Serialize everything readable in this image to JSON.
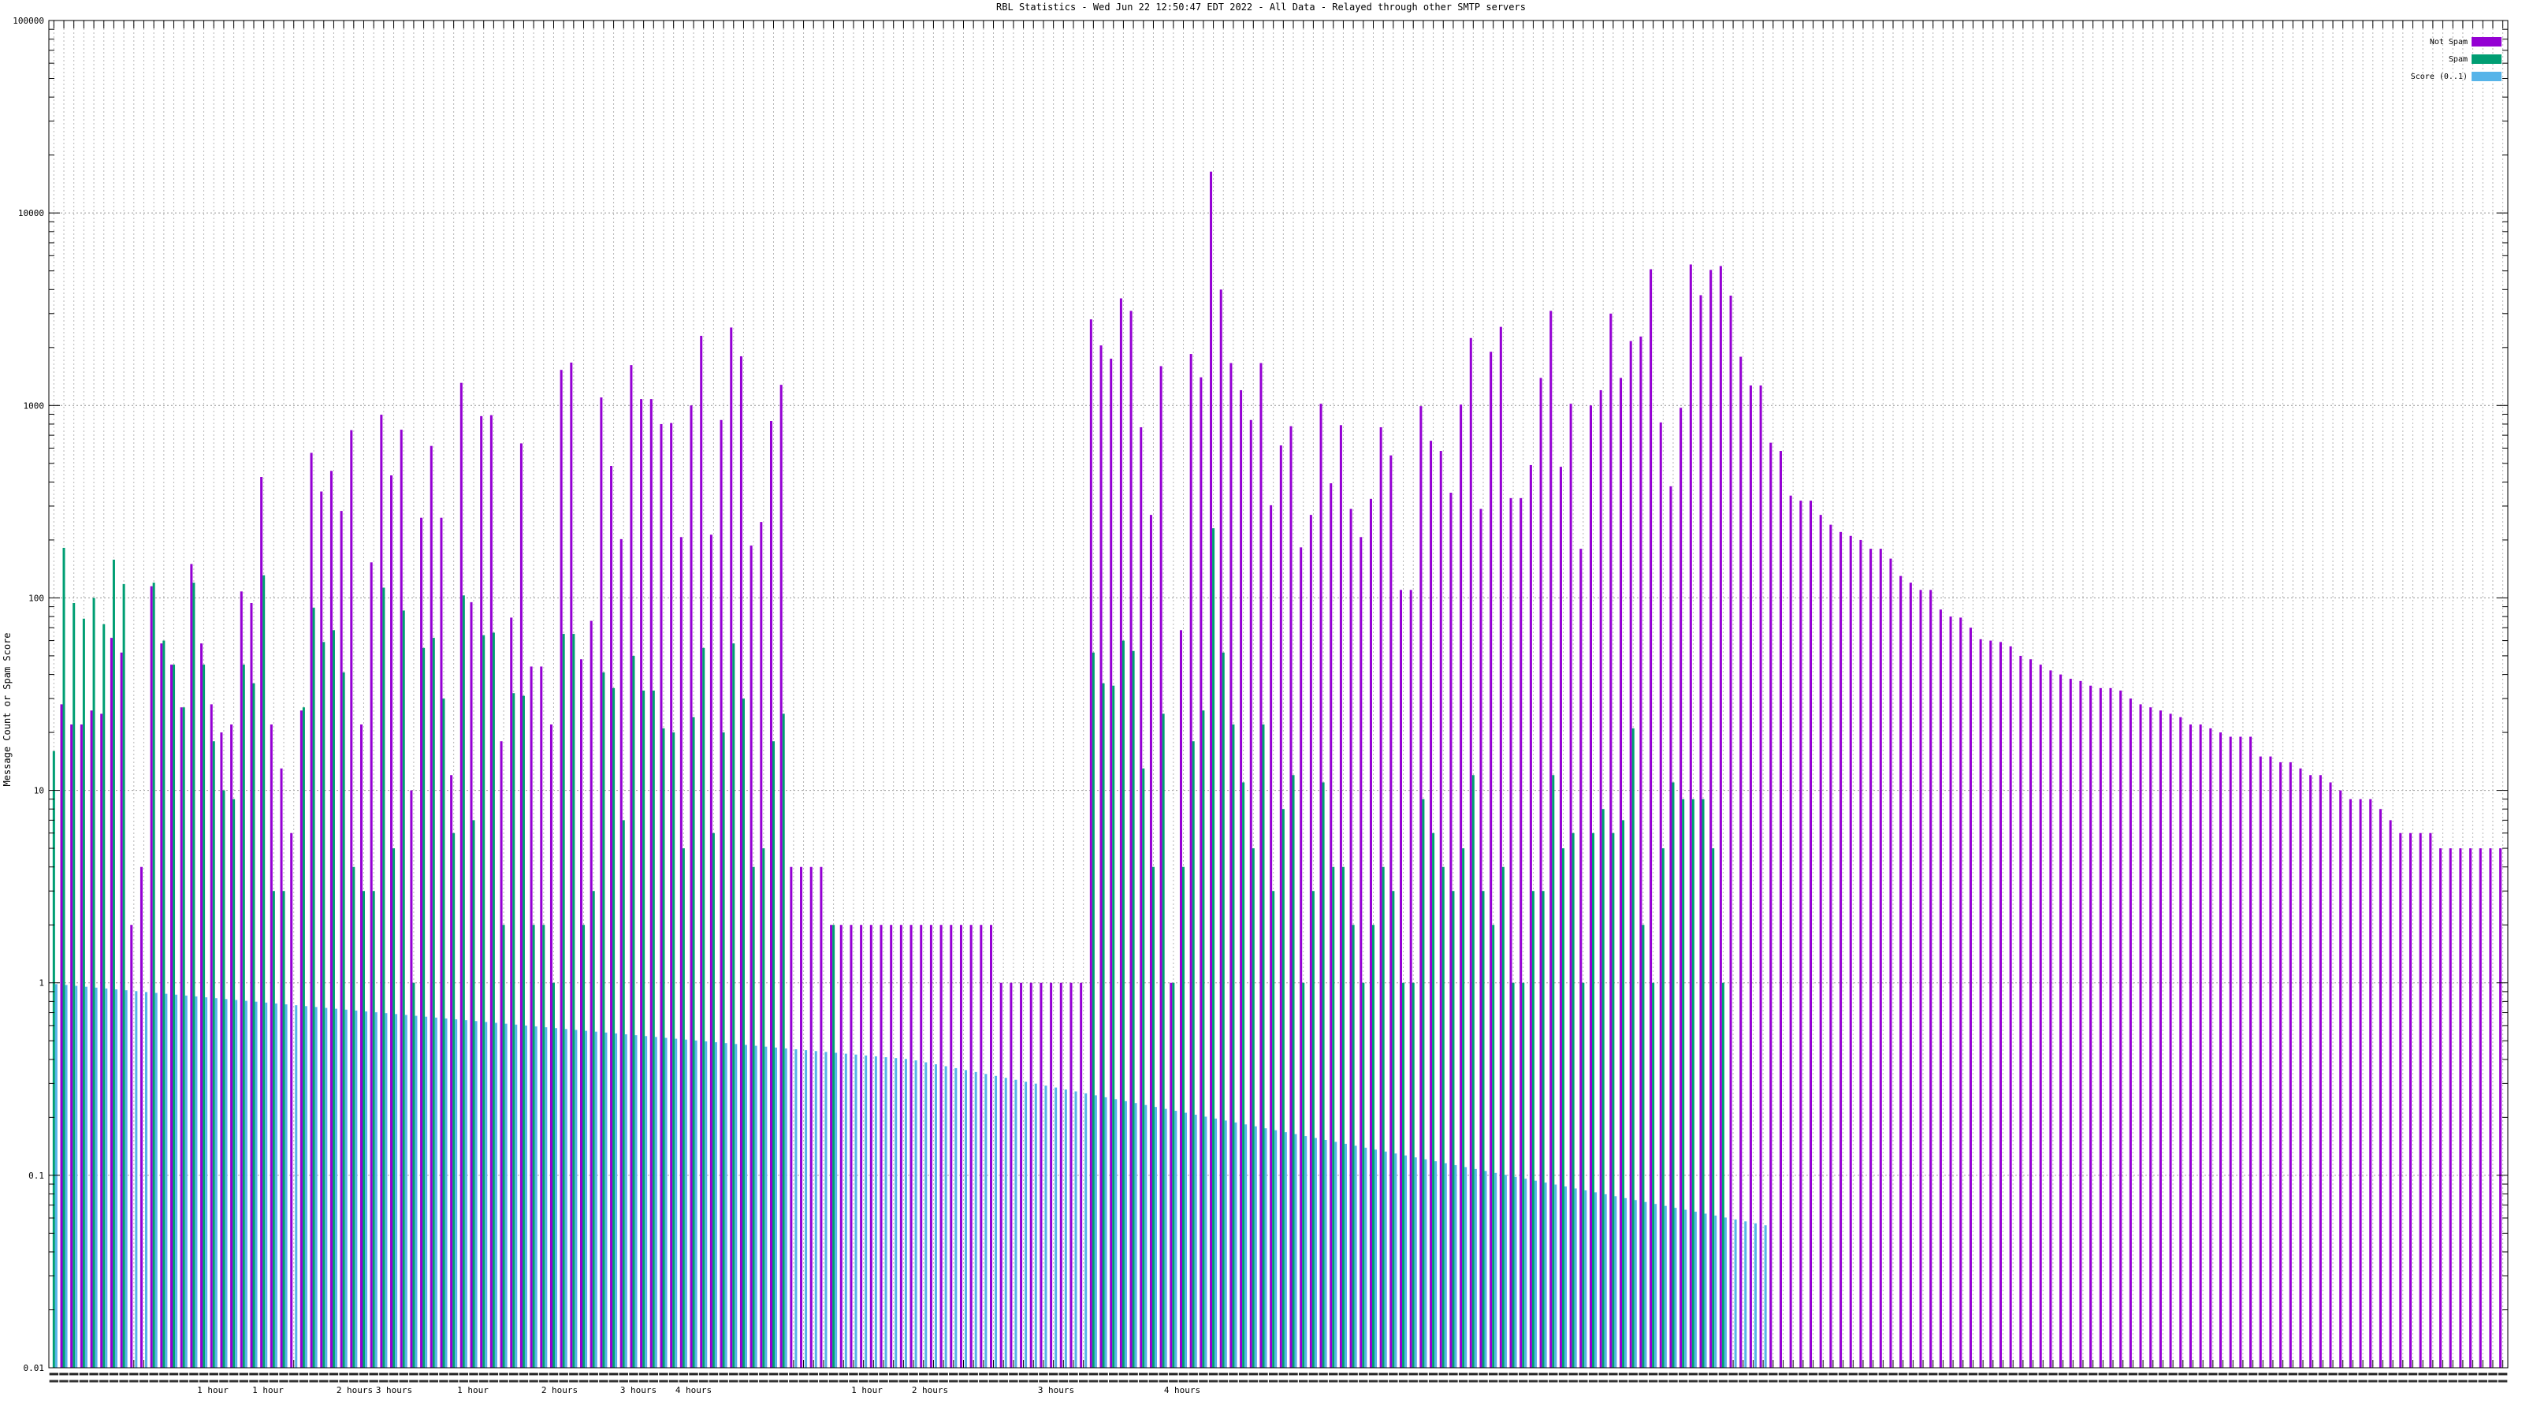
{
  "chart_data": {
    "type": "bar",
    "title": "RBL Statistics - Wed Jun 22 12:50:47 EDT 2022 - All Data - Relayed through other SMTP servers",
    "ylabel": "Message Count or Spam Score",
    "yscale": "log",
    "ylim": [
      0.01,
      100000
    ],
    "yticks": [
      "0.01",
      "0.1",
      "1",
      "10",
      "100",
      "1000",
      "10000",
      "100000"
    ],
    "grid": true,
    "legend_position": "top-right",
    "colors": {
      "not_spam": "#9400d3",
      "spam": "#009e73",
      "score": "#56b4e9"
    },
    "series": [
      {
        "name": "Not Spam",
        "key": "not_spam"
      },
      {
        "name": "Spam",
        "key": "spam"
      },
      {
        "name": "Score (0..1)",
        "key": "score"
      }
    ],
    "not_spam": [
      0,
      28,
      22,
      22,
      26,
      25,
      62,
      52,
      2,
      4,
      115,
      58,
      45,
      27,
      150,
      58,
      28,
      20,
      22,
      108,
      94,
      425,
      22,
      13,
      6,
      26,
      567,
      357,
      457,
      283,
      744,
      22,
      153,
      895,
      433,
      748,
      10,
      261,
      616,
      261,
      12,
      1310,
      95,
      880,
      890,
      18,
      79,
      635,
      44,
      44,
      22,
      1530,
      1670,
      48,
      76,
      1100,
      485,
      202,
      1620,
      1080,
      1080,
      800,
      810,
      207,
      1000,
      2300,
      213,
      840,
      2540,
      1800,
      187,
      248,
      830,
      1280,
      4,
      4,
      4,
      4,
      2,
      2,
      2,
      2,
      2,
      2,
      2,
      2,
      2,
      2,
      2,
      2,
      2,
      2,
      2,
      2,
      2,
      1,
      1,
      1,
      1,
      1,
      1,
      1,
      1,
      1,
      2800,
      2050,
      1750,
      3600,
      3100,
      770,
      270,
      1600,
      1,
      68,
      1850,
      1400,
      16400,
      4000,
      1660,
      1200,
      840,
      1660,
      303,
      620,
      780,
      183,
      270,
      1020,
      394,
      790,
      290,
      207,
      327,
      770,
      550,
      110,
      110,
      992,
      655,
      580,
      352,
      1010,
      2240,
      290,
      1900,
      2560,
      330,
      330,
      490,
      1390,
      3100,
      480,
      1020,
      180,
      1000,
      1200,
      3000,
      1390,
      2160,
      2280,
      5100,
      816,
      380,
      972,
      5400,
      3740,
      5060,
      5300,
      3720,
      1790,
      1270,
      1270,
      640,
      580,
      340,
      320,
      320,
      270,
      240,
      220,
      210,
      200,
      180,
      180,
      160,
      130,
      120,
      110,
      110,
      87,
      80,
      79,
      70,
      61,
      60,
      59,
      56,
      50,
      48,
      45,
      42,
      40,
      38,
      37,
      35,
      34,
      34,
      33,
      30,
      28,
      27,
      26,
      25,
      24,
      22,
      22,
      21,
      20,
      19,
      19,
      19,
      15,
      15,
      14,
      14,
      13,
      12,
      12,
      11,
      10,
      9,
      9,
      9,
      8,
      7,
      6,
      6,
      6,
      6,
      5,
      5,
      5,
      5,
      5,
      5,
      5
    ],
    "spam": [
      16,
      182,
      94,
      78,
      100,
      73,
      158,
      118,
      0,
      0,
      120,
      60,
      45,
      27,
      120,
      45,
      18,
      10,
      9,
      45,
      36,
      131,
      3,
      3,
      0,
      27,
      89,
      59,
      68,
      41,
      4,
      3,
      3,
      113,
      5,
      86,
      1,
      55,
      62,
      30,
      6,
      103,
      7,
      64,
      66,
      2,
      32,
      31,
      2,
      2,
      1,
      65,
      65,
      2,
      3,
      41,
      34,
      7,
      50,
      33,
      33,
      21,
      20,
      5,
      24,
      55,
      6,
      20,
      58,
      30,
      4,
      5,
      18,
      25,
      0,
      0,
      0,
      0,
      2,
      0,
      0,
      0,
      0,
      0,
      0,
      0,
      0,
      0,
      0,
      0,
      0,
      0,
      0,
      0,
      0,
      0,
      0,
      0,
      0,
      0,
      0,
      0,
      0,
      0,
      52,
      36,
      35,
      60,
      53,
      13,
      4,
      25,
      1,
      4,
      18,
      26,
      230,
      52,
      22,
      11,
      5,
      22,
      3,
      8,
      12,
      1,
      3,
      11,
      4,
      4,
      2,
      1,
      2,
      4,
      3,
      1,
      1,
      9,
      6,
      4,
      3,
      5,
      12,
      3,
      2,
      4,
      1,
      1,
      3,
      3,
      12,
      5,
      6,
      1,
      6,
      8,
      6,
      7,
      21,
      2,
      1,
      5,
      11,
      9,
      9,
      9,
      5,
      1,
      0,
      0,
      0,
      0,
      0,
      0,
      0,
      0,
      0,
      0,
      0,
      0,
      0,
      0,
      0,
      0,
      0,
      0,
      0,
      0,
      0,
      0,
      0,
      0,
      0,
      0,
      0,
      0,
      0,
      0,
      0,
      0,
      0,
      0,
      0,
      0,
      0,
      0,
      0,
      0,
      0,
      0,
      0,
      0,
      0,
      0,
      0,
      0,
      0,
      0,
      0,
      0,
      0,
      0,
      0,
      0,
      0,
      0,
      0,
      0,
      0,
      0,
      0,
      0,
      0,
      0
    ],
    "score_start": 0.985,
    "score_mid": 0.4,
    "score_end": 0.055,
    "scored_count": 172,
    "x_tick_labels": [
      "1 hour",
      "1 hour",
      "2 hours",
      "3 hours",
      "1 hour",
      "2 hours",
      "3 hours",
      "4 hours",
      "1 hour",
      "2 hours",
      "3 hours",
      "4 hours"
    ]
  }
}
